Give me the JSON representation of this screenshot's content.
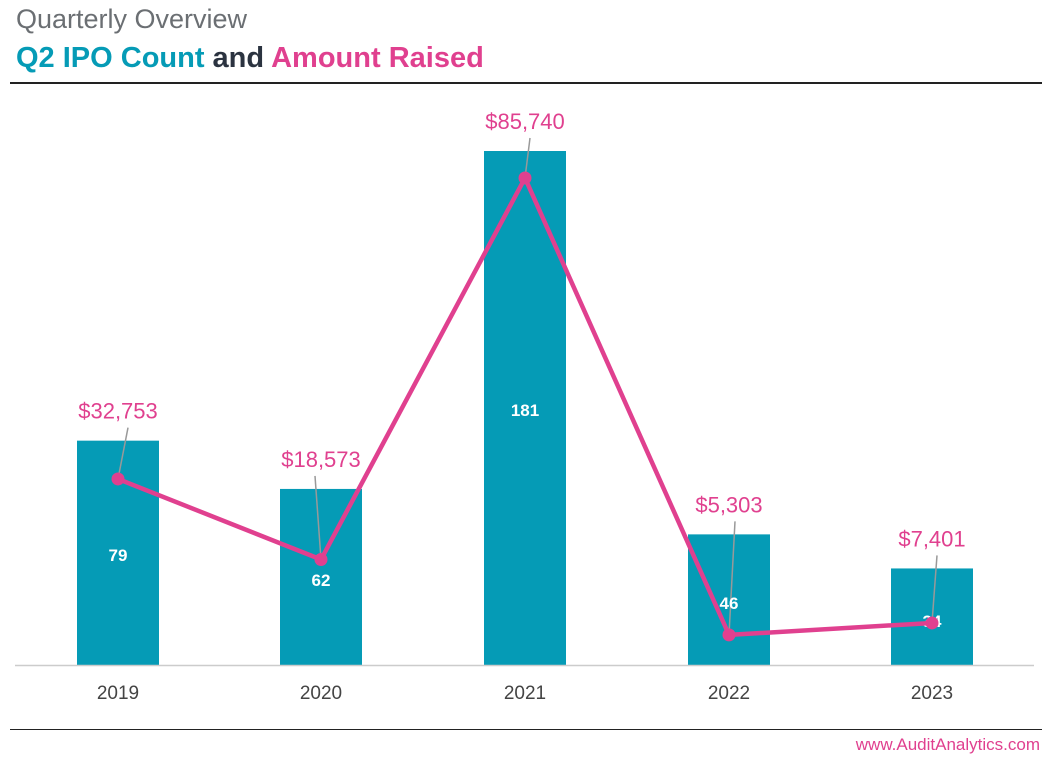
{
  "header": {
    "kicker": "Quarterly Overview",
    "title_part1": "Q2 IPO Count",
    "title_part2": " and ",
    "title_part3": "Amount Raised"
  },
  "footer": {
    "url": "www.AuditAnalytics.com"
  },
  "colors": {
    "teal": "#059bb6",
    "pink": "#e0408f",
    "dark": "#2b3340",
    "axis": "#cccccc",
    "leader": "#999999"
  },
  "chart_data": {
    "type": "bar",
    "categories": [
      "2019",
      "2020",
      "2021",
      "2022",
      "2023"
    ],
    "series": [
      {
        "type": "bar",
        "values": [
          79,
          62,
          181,
          46,
          34
        ],
        "labels": [
          "79",
          "62",
          "181",
          "46",
          "34"
        ]
      },
      {
        "type": "line",
        "values": [
          32753,
          18573,
          85740,
          5303,
          7401
        ],
        "labels": [
          "$32,753",
          "$18,573",
          "$85,740",
          "$5,303",
          "$7,401"
        ]
      }
    ],
    "grid": false,
    "legend": "none"
  }
}
